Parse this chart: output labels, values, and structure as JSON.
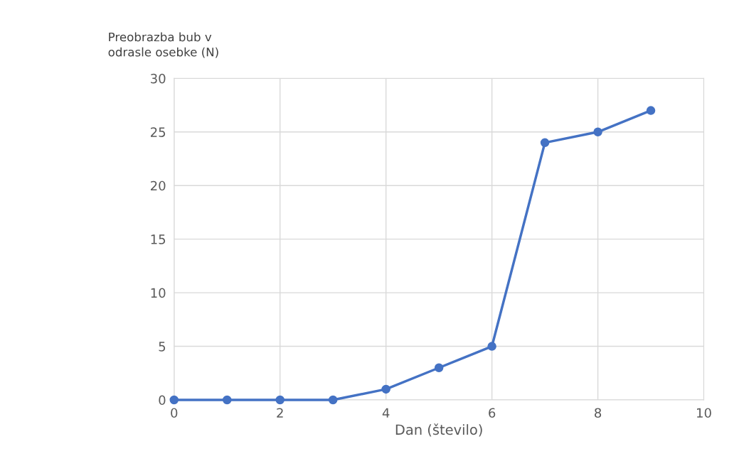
{
  "chart_data": {
    "type": "line",
    "xlabel": "Dan (število)",
    "ylabel": "Preobrazba bub v\nodrasle osebke (N)",
    "x": [
      0,
      1,
      2,
      3,
      4,
      5,
      6,
      7,
      8,
      9
    ],
    "series": [
      {
        "color": "#4472c4",
        "values": [
          0,
          0,
          0,
          0,
          1,
          3,
          5,
          24,
          25,
          27
        ]
      }
    ],
    "xlim": [
      0,
      10
    ],
    "xticks": [
      0,
      2,
      4,
      6,
      8,
      10
    ],
    "ylim": [
      0,
      30
    ],
    "yticks": [
      0,
      5,
      10,
      15,
      20,
      25,
      30
    ],
    "grid": true,
    "marker": "circle",
    "line_style": "solid",
    "legend": false
  }
}
